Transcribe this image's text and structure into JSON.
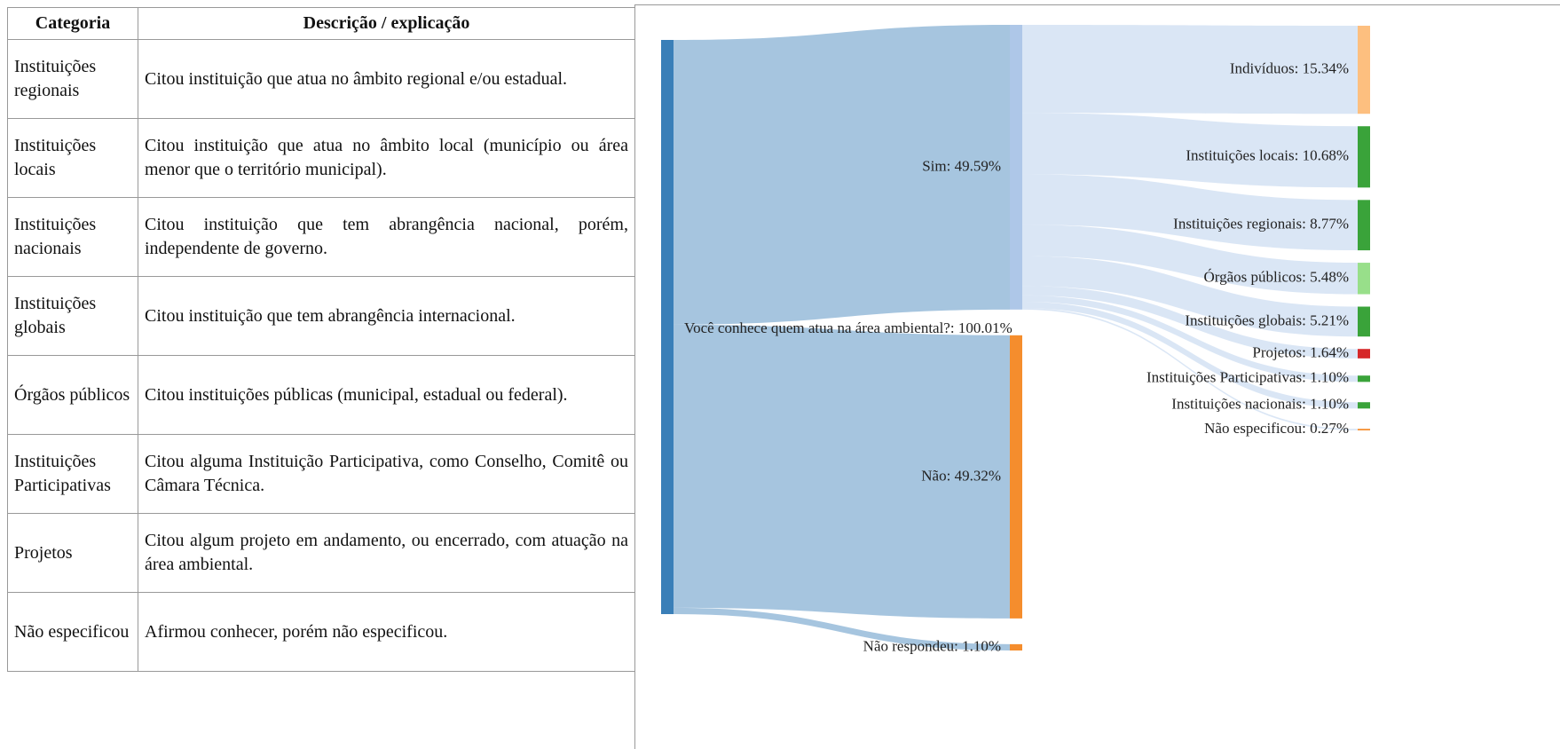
{
  "table": {
    "header": [
      "Categoria",
      "Descrição / explicação"
    ],
    "rows": [
      [
        "Instituições regionais",
        "Citou instituição que atua no âmbito regional e/ou estadual."
      ],
      [
        "Instituições locais",
        "Citou instituição que atua no âmbito local (município ou área menor que o território municipal)."
      ],
      [
        "Instituições nacionais",
        "Citou instituição que tem abrangência nacional, porém, independente de governo."
      ],
      [
        "Instituições globais",
        "Citou instituição que tem abrangência internacional."
      ],
      [
        "Órgãos públicos",
        "Citou instituições públicas (municipal, estadual ou federal)."
      ],
      [
        "Instituições Participativas",
        "Citou alguma Instituição Participativa, como Conselho, Comitê ou Câmara Técnica."
      ],
      [
        "Projetos",
        "Citou algum projeto em andamento, ou encerrado, com atuação na área ambiental."
      ],
      [
        "Não especificou",
        "Afirmou conhecer, porém não especificou."
      ]
    ]
  },
  "chart_data": {
    "type": "sankey",
    "root": {
      "label": "Você conhece quem atua na área ambiental?: 100.01%",
      "value": 100.01,
      "color": "#3a7fb8",
      "children": [
        {
          "label": "Sim: 49.59%",
          "value": 49.59,
          "color": "#aec7e8",
          "children": [
            {
              "label": "Indivíduos: 15.34%",
              "value": 15.34,
              "color": "#fdbf7f"
            },
            {
              "label": "Instituições locais: 10.68%",
              "value": 10.68,
              "color": "#3aa33a"
            },
            {
              "label": "Instituições regionais: 8.77%",
              "value": 8.77,
              "color": "#3aa33a"
            },
            {
              "label": "Órgãos públicos: 5.48%",
              "value": 5.48,
              "color": "#98df8a"
            },
            {
              "label": "Instituições globais: 5.21%",
              "value": 5.21,
              "color": "#3aa33a"
            },
            {
              "label": "Projetos: 1.64%",
              "value": 1.64,
              "color": "#d62728"
            },
            {
              "label": "Instituições Participativas: 1.10%",
              "value": 1.1,
              "color": "#3aa33a"
            },
            {
              "label": "Instituições nacionais: 1.10%",
              "value": 1.1,
              "color": "#3aa33a"
            },
            {
              "label": "Não especificou: 0.27%",
              "value": 0.27,
              "color": "#f58d2d"
            }
          ]
        },
        {
          "label": "Não: 49.32%",
          "value": 49.32,
          "color": "#f58d2d"
        },
        {
          "label": "Não respondeu: 1.10%",
          "value": 1.1,
          "color": "#f58d2d"
        }
      ]
    }
  }
}
